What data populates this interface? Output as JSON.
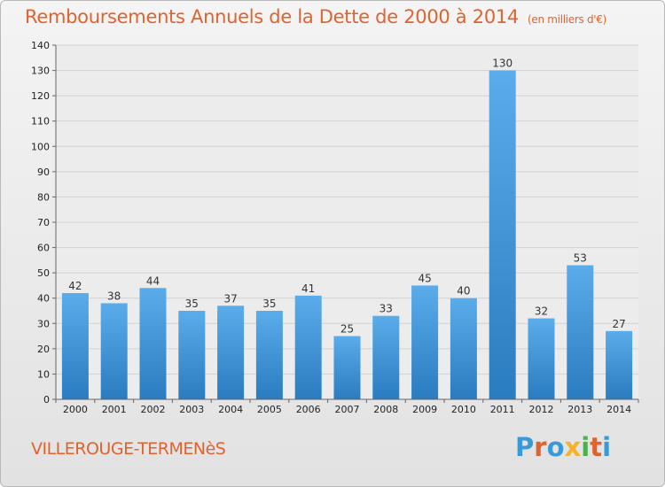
{
  "title": "Remboursements Annuels de la Dette de 2000 à 2014",
  "subtitle": "(en milliers d'€)",
  "place": "VILLEROUGE-TERMENèS",
  "logo": {
    "letters": [
      "P",
      "r",
      "o",
      "x",
      "i",
      "t",
      "i"
    ],
    "colors": [
      "#3a9ad9",
      "#e0632f",
      "#3a9ad9",
      "#f2b428",
      "#4caf50",
      "#e0632f",
      "#3a9ad9"
    ]
  },
  "colors": {
    "bar": "#3d95d8",
    "bar_light": "#5aacea",
    "bar_dark": "#2a7cc0",
    "title": "#e0632f"
  },
  "chart_data": {
    "type": "bar",
    "title": "Remboursements Annuels de la Dette de 2000 à 2014",
    "subtitle": "(en milliers d'€)",
    "categories": [
      "2000",
      "2001",
      "2002",
      "2003",
      "2004",
      "2005",
      "2006",
      "2007",
      "2008",
      "2009",
      "2010",
      "2011",
      "2012",
      "2013",
      "2014"
    ],
    "values": [
      42,
      38,
      44,
      35,
      37,
      35,
      41,
      25,
      33,
      45,
      40,
      130,
      32,
      53,
      27
    ],
    "ylim": [
      0,
      140
    ],
    "yticks": [
      0,
      10,
      20,
      30,
      40,
      50,
      60,
      70,
      80,
      90,
      100,
      110,
      120,
      130,
      140
    ],
    "grid": true,
    "xlabel": "",
    "ylabel": ""
  }
}
